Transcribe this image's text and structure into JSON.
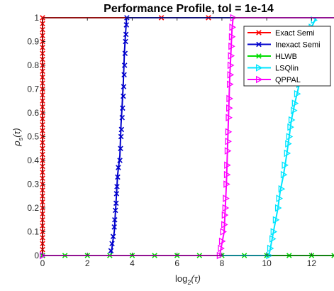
{
  "chart_data": {
    "type": "line",
    "title": "Performance Profile, tol = 1e-14",
    "xlabel": {
      "base": "log",
      "sub": "2",
      "arg": "(τ)"
    },
    "ylabel": {
      "base": "ρ",
      "sub": "s",
      "arg": "(τ)"
    },
    "xlim": [
      0,
      13
    ],
    "ylim": [
      0,
      1
    ],
    "xticks": [
      0,
      2,
      4,
      6,
      8,
      10,
      12
    ],
    "yticks": [
      0,
      0.1,
      0.2,
      0.3,
      0.4,
      0.5,
      0.6,
      0.7,
      0.8,
      0.9,
      1
    ],
    "grid": false,
    "legend_position": "top-right",
    "series": [
      {
        "name": "Exact Semi",
        "color": "#ff0000",
        "marker": "x",
        "points": [
          [
            0,
            0
          ],
          [
            0,
            0.98
          ],
          [
            0,
            1
          ],
          [
            13,
            1
          ]
        ],
        "markers": [
          [
            0,
            0
          ],
          [
            0,
            0.025
          ],
          [
            0,
            0.05
          ],
          [
            0,
            0.075
          ],
          [
            0,
            0.1
          ],
          [
            0,
            0.125
          ],
          [
            0,
            0.15
          ],
          [
            0,
            0.175
          ],
          [
            0,
            0.2
          ],
          [
            0,
            0.225
          ],
          [
            0,
            0.25
          ],
          [
            0,
            0.275
          ],
          [
            0,
            0.3
          ],
          [
            0,
            0.325
          ],
          [
            0,
            0.35
          ],
          [
            0,
            0.375
          ],
          [
            0,
            0.4
          ],
          [
            0,
            0.425
          ],
          [
            0,
            0.45
          ],
          [
            0,
            0.475
          ],
          [
            0,
            0.5
          ],
          [
            0,
            0.525
          ],
          [
            0,
            0.55
          ],
          [
            0,
            0.575
          ],
          [
            0,
            0.6
          ],
          [
            0,
            0.625
          ],
          [
            0,
            0.65
          ],
          [
            0,
            0.675
          ],
          [
            0,
            0.7
          ],
          [
            0,
            0.725
          ],
          [
            0,
            0.75
          ],
          [
            0,
            0.775
          ],
          [
            0,
            0.8
          ],
          [
            0,
            0.825
          ],
          [
            0,
            0.85
          ],
          [
            0,
            0.875
          ],
          [
            0,
            0.9
          ],
          [
            0,
            0.925
          ],
          [
            0,
            0.95
          ],
          [
            0,
            0.975
          ],
          [
            0,
            1
          ],
          [
            5.3,
            1
          ],
          [
            7.4,
            1
          ]
        ]
      },
      {
        "name": "Inexact Semi",
        "color": "#0000cc",
        "marker": "x",
        "points": [
          [
            0,
            0
          ],
          [
            3.05,
            0
          ],
          [
            3.15,
            0.07
          ],
          [
            3.2,
            0.1
          ],
          [
            3.25,
            0.18
          ],
          [
            3.3,
            0.26
          ],
          [
            3.35,
            0.34
          ],
          [
            3.45,
            0.42
          ],
          [
            3.5,
            0.55
          ],
          [
            3.55,
            0.63
          ],
          [
            3.6,
            0.72
          ],
          [
            3.65,
            0.85
          ],
          [
            3.7,
            0.93
          ],
          [
            3.75,
            1
          ],
          [
            13,
            1
          ]
        ],
        "markers": [
          [
            3.05,
            0.02
          ],
          [
            3.1,
            0.05
          ],
          [
            3.15,
            0.08
          ],
          [
            3.2,
            0.12
          ],
          [
            3.22,
            0.15
          ],
          [
            3.25,
            0.19
          ],
          [
            3.28,
            0.22
          ],
          [
            3.3,
            0.26
          ],
          [
            3.32,
            0.29
          ],
          [
            3.35,
            0.33
          ],
          [
            3.38,
            0.37
          ],
          [
            3.45,
            0.4
          ],
          [
            3.48,
            0.45
          ],
          [
            3.5,
            0.5
          ],
          [
            3.52,
            0.53
          ],
          [
            3.55,
            0.58
          ],
          [
            3.57,
            0.62
          ],
          [
            3.6,
            0.67
          ],
          [
            3.62,
            0.71
          ],
          [
            3.64,
            0.76
          ],
          [
            3.66,
            0.8
          ],
          [
            3.68,
            0.85
          ],
          [
            3.7,
            0.9
          ],
          [
            3.72,
            0.93
          ],
          [
            3.74,
            0.97
          ],
          [
            3.76,
            1
          ]
        ]
      },
      {
        "name": "HLWB",
        "color": "#00dd00",
        "marker": "x",
        "points": [
          [
            0,
            0
          ],
          [
            13,
            0
          ]
        ],
        "markers": [
          [
            0,
            0
          ],
          [
            1.0,
            0
          ],
          [
            2.0,
            0
          ],
          [
            3.0,
            0
          ],
          [
            4.0,
            0
          ],
          [
            5.0,
            0
          ],
          [
            6.0,
            0
          ],
          [
            7.0,
            0
          ],
          [
            8.0,
            0
          ],
          [
            9.0,
            0
          ],
          [
            10.0,
            0
          ],
          [
            11.0,
            0
          ],
          [
            12.0,
            0
          ],
          [
            13,
            0
          ]
        ]
      },
      {
        "name": "LSQlin",
        "color": "#00e5ff",
        "marker": "triangle-right",
        "points": [
          [
            0,
            0
          ],
          [
            10.1,
            0
          ],
          [
            10.2,
            0.05
          ],
          [
            10.3,
            0.1
          ],
          [
            10.5,
            0.2
          ],
          [
            10.6,
            0.27
          ],
          [
            10.75,
            0.34
          ],
          [
            10.9,
            0.43
          ],
          [
            11.0,
            0.5
          ],
          [
            11.1,
            0.57
          ],
          [
            11.25,
            0.64
          ],
          [
            11.4,
            0.7
          ],
          [
            11.55,
            0.76
          ],
          [
            11.7,
            0.83
          ],
          [
            11.85,
            0.9
          ],
          [
            12.0,
            0.96
          ],
          [
            12.2,
            1
          ],
          [
            13,
            1
          ]
        ],
        "markers": [
          [
            0,
            0
          ],
          [
            10.1,
            0
          ],
          [
            10.15,
            0.03
          ],
          [
            10.25,
            0.07
          ],
          [
            10.3,
            0.1
          ],
          [
            10.4,
            0.15
          ],
          [
            10.5,
            0.2
          ],
          [
            10.55,
            0.24
          ],
          [
            10.65,
            0.28
          ],
          [
            10.75,
            0.34
          ],
          [
            10.8,
            0.38
          ],
          [
            10.9,
            0.43
          ],
          [
            10.95,
            0.47
          ],
          [
            11.0,
            0.5
          ],
          [
            11.05,
            0.54
          ],
          [
            11.1,
            0.57
          ],
          [
            11.2,
            0.61
          ],
          [
            11.25,
            0.64
          ],
          [
            11.35,
            0.68
          ],
          [
            11.45,
            0.72
          ],
          [
            11.55,
            0.76
          ],
          [
            11.6,
            0.8
          ],
          [
            11.7,
            0.83
          ],
          [
            11.8,
            0.87
          ],
          [
            11.9,
            0.92
          ],
          [
            12.0,
            0.96
          ],
          [
            12.1,
            0.99
          ]
        ]
      },
      {
        "name": "QPPAL",
        "color": "#ff00ff",
        "marker": "triangle-right",
        "points": [
          [
            0,
            0
          ],
          [
            7.9,
            0
          ],
          [
            8.0,
            0.05
          ],
          [
            8.1,
            0.1
          ],
          [
            8.15,
            0.2
          ],
          [
            8.2,
            0.3
          ],
          [
            8.25,
            0.45
          ],
          [
            8.3,
            0.6
          ],
          [
            8.35,
            0.75
          ],
          [
            8.4,
            0.85
          ],
          [
            8.45,
            0.95
          ],
          [
            8.5,
            1
          ],
          [
            13,
            1
          ]
        ],
        "markers": [
          [
            0,
            0
          ],
          [
            7.9,
            0
          ],
          [
            7.95,
            0.03
          ],
          [
            8.0,
            0.06
          ],
          [
            8.05,
            0.1
          ],
          [
            8.1,
            0.13
          ],
          [
            8.12,
            0.17
          ],
          [
            8.15,
            0.2
          ],
          [
            8.17,
            0.24
          ],
          [
            8.2,
            0.3
          ],
          [
            8.22,
            0.34
          ],
          [
            8.23,
            0.38
          ],
          [
            8.25,
            0.44
          ],
          [
            8.27,
            0.48
          ],
          [
            8.28,
            0.52
          ],
          [
            8.3,
            0.58
          ],
          [
            8.32,
            0.62
          ],
          [
            8.33,
            0.66
          ],
          [
            8.35,
            0.72
          ],
          [
            8.37,
            0.76
          ],
          [
            8.38,
            0.8
          ],
          [
            8.4,
            0.84
          ],
          [
            8.42,
            0.88
          ],
          [
            8.44,
            0.92
          ],
          [
            8.46,
            0.96
          ],
          [
            8.5,
            1
          ]
        ]
      }
    ]
  }
}
